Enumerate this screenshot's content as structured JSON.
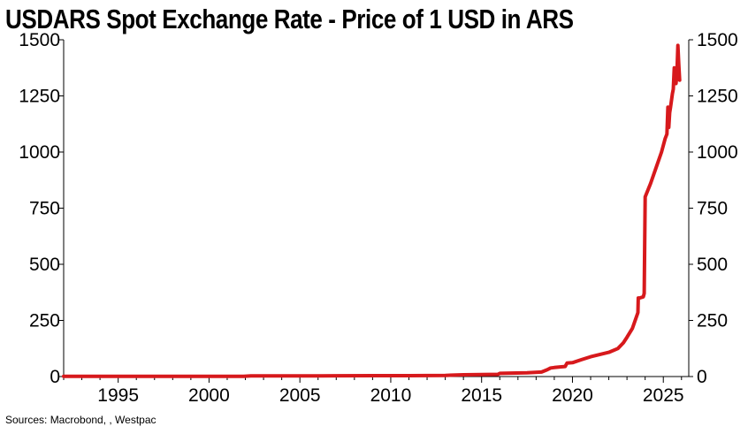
{
  "chart_data": {
    "type": "line",
    "title": "USDARS Spot Exchange Rate - Price of 1 USD in ARS",
    "source": "Sources: Macrobond, , Westpac",
    "xlabel": "",
    "ylabel": "",
    "xlim": [
      1992.0,
      2026.4
    ],
    "ylim": [
      0,
      1500
    ],
    "x_ticks": [
      1995,
      2000,
      2005,
      2010,
      2015,
      2020,
      2025
    ],
    "y_ticks": [
      0,
      250,
      500,
      750,
      1000,
      1250,
      1500
    ],
    "y_axes": [
      "left",
      "right"
    ],
    "grid": false,
    "series": [
      {
        "name": "USDARS",
        "color": "#d7191c",
        "x": [
          1992.0,
          2001.9,
          2002.3,
          2003.0,
          2006.0,
          2009.0,
          2011.0,
          2013.0,
          2014.0,
          2015.9,
          2016.0,
          2017.5,
          2018.3,
          2018.6,
          2018.8,
          2019.0,
          2019.6,
          2019.7,
          2020.0,
          2020.5,
          2021.0,
          2021.5,
          2022.0,
          2022.5,
          2022.8,
          2023.0,
          2023.3,
          2023.6,
          2023.62,
          2023.7,
          2023.9,
          2023.95,
          2024.0,
          2024.3,
          2024.6,
          2024.9,
          2025.1,
          2025.2,
          2025.25,
          2025.28,
          2025.3,
          2025.35,
          2025.4,
          2025.5,
          2025.55,
          2025.6,
          2025.63,
          2025.7,
          2025.75,
          2025.8,
          2025.85,
          2025.9
        ],
        "y": [
          1,
          1,
          3,
          3,
          3,
          4,
          4,
          5,
          8,
          10,
          14,
          17,
          20,
          30,
          38,
          40,
          45,
          60,
          62,
          75,
          88,
          98,
          108,
          125,
          150,
          175,
          215,
          285,
          350,
          350,
          355,
          370,
          800,
          860,
          930,
          1000,
          1060,
          1080,
          1200,
          1140,
          1110,
          1175,
          1200,
          1260,
          1280,
          1375,
          1330,
          1305,
          1350,
          1475,
          1390,
          1320
        ]
      }
    ]
  }
}
